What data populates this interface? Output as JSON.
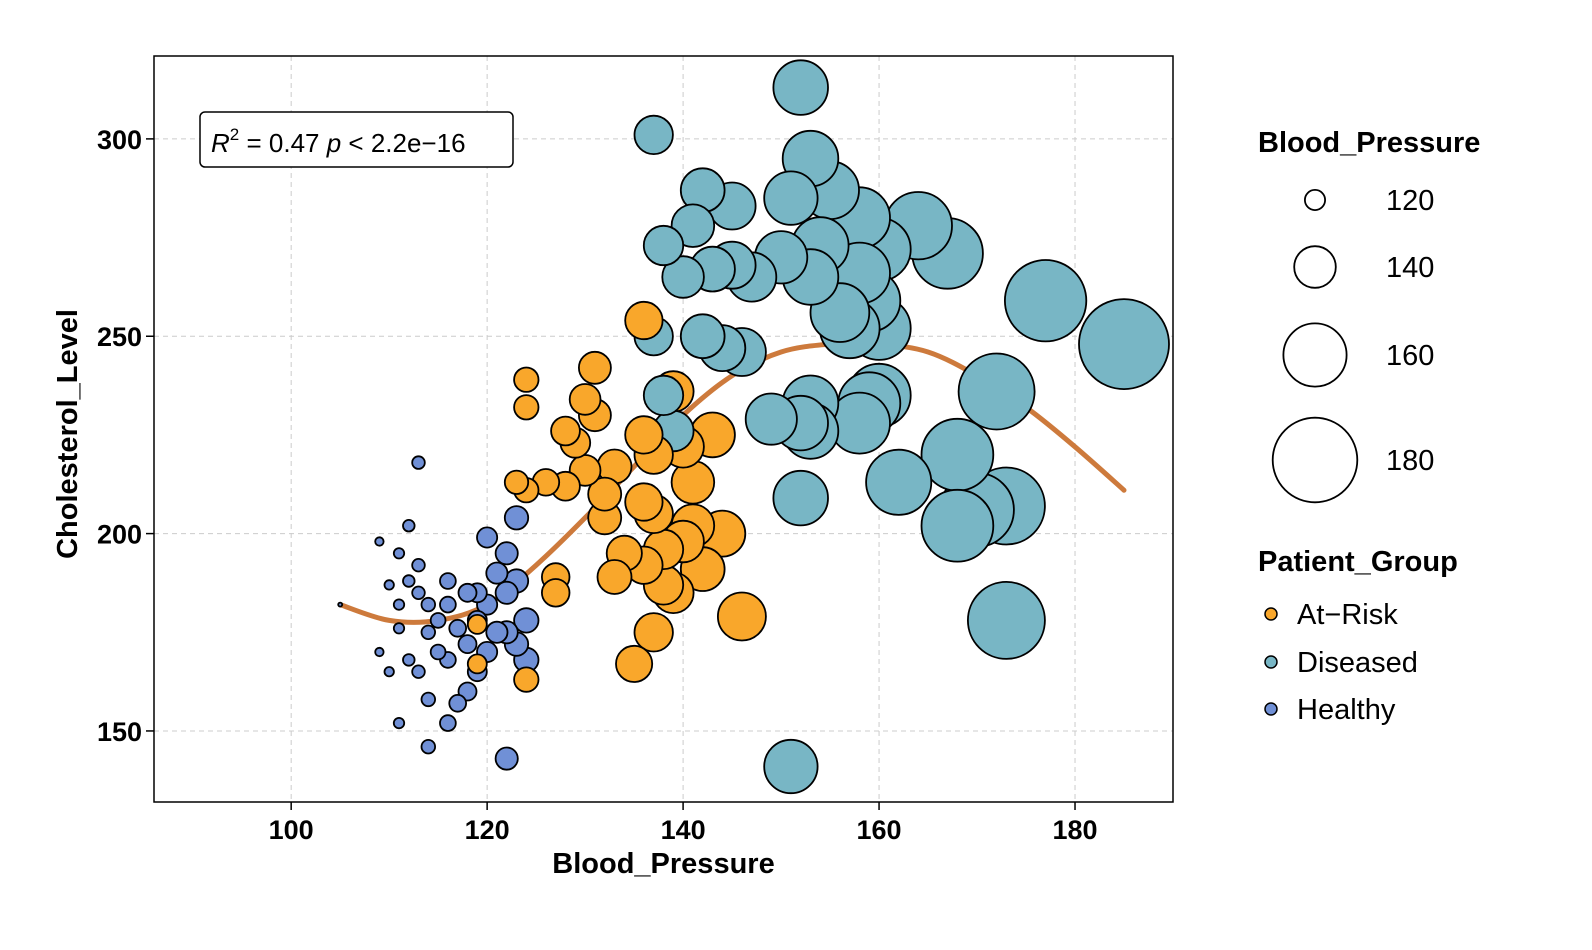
{
  "chart_data": {
    "type": "scatter",
    "xlabel": "Blood_Pressure",
    "ylabel": "Cholesterol_Level",
    "xlim": [
      86,
      190
    ],
    "ylim": [
      132,
      321
    ],
    "x_ticks": [
      100,
      120,
      140,
      160,
      180
    ],
    "y_ticks": [
      150,
      200,
      250,
      300
    ],
    "x_tick_labels": [
      "100",
      "120",
      "140",
      "160",
      "180"
    ],
    "y_tick_labels": [
      "150",
      "200",
      "250",
      "300"
    ],
    "grid": true,
    "annotation": {
      "r_label": "R",
      "r_power": "2",
      "r_value": " = 0.47 ",
      "p_label": "p",
      "p_value": " < 2.2e−16"
    },
    "size_legend": {
      "title": "Blood_Pressure",
      "entries": [
        {
          "value": 120,
          "label": "120"
        },
        {
          "value": 140,
          "label": "140"
        },
        {
          "value": 160,
          "label": "160"
        },
        {
          "value": 180,
          "label": "180"
        }
      ]
    },
    "color_legend": {
      "title": "Patient_Group",
      "entries": [
        {
          "name": "At−Risk",
          "color": "#F9A72B"
        },
        {
          "name": "Diseased",
          "color": "#78B6C5"
        },
        {
          "name": "Healthy",
          "color": "#7090D6"
        }
      ]
    },
    "trend": {
      "color": "#CD7A3C",
      "points": [
        [
          105,
          182
        ],
        [
          110,
          178
        ],
        [
          115,
          178
        ],
        [
          120,
          182
        ],
        [
          125,
          192
        ],
        [
          130,
          204
        ],
        [
          135,
          217
        ],
        [
          140,
          230
        ],
        [
          145,
          240
        ],
        [
          150,
          246
        ],
        [
          155,
          248
        ],
        [
          160,
          248
        ],
        [
          165,
          246
        ],
        [
          170,
          240
        ],
        [
          175,
          232
        ],
        [
          180,
          222
        ],
        [
          185,
          211
        ]
      ]
    },
    "series": [
      {
        "name": "Healthy",
        "color": "#7090D6",
        "points": [
          [
            105,
            182
          ],
          [
            109,
            198
          ],
          [
            109,
            170
          ],
          [
            110,
            165
          ],
          [
            110,
            187
          ],
          [
            111,
            152
          ],
          [
            111,
            176
          ],
          [
            111,
            182
          ],
          [
            111,
            195
          ],
          [
            112,
            202
          ],
          [
            112,
            168
          ],
          [
            112,
            188
          ],
          [
            113,
            218
          ],
          [
            113,
            192
          ],
          [
            113,
            185
          ],
          [
            113,
            165
          ],
          [
            114,
            146
          ],
          [
            114,
            158
          ],
          [
            114,
            182
          ],
          [
            114,
            175
          ],
          [
            115,
            178
          ],
          [
            115,
            170
          ],
          [
            116,
            152
          ],
          [
            116,
            188
          ],
          [
            116,
            168
          ],
          [
            116,
            182
          ],
          [
            117,
            176
          ],
          [
            117,
            157
          ],
          [
            118,
            185
          ],
          [
            118,
            172
          ],
          [
            118,
            160
          ],
          [
            119,
            185
          ],
          [
            119,
            165
          ],
          [
            119,
            178
          ],
          [
            120,
            182
          ],
          [
            120,
            199
          ],
          [
            120,
            170
          ],
          [
            121,
            175
          ],
          [
            121,
            190
          ],
          [
            122,
            143
          ],
          [
            122,
            175
          ],
          [
            122,
            185
          ],
          [
            122,
            195
          ],
          [
            123,
            204
          ],
          [
            123,
            172
          ],
          [
            123,
            188
          ],
          [
            124,
            168
          ],
          [
            124,
            178
          ]
        ]
      },
      {
        "name": "At−Risk",
        "color": "#F9A72B",
        "points": [
          [
            119,
            177
          ],
          [
            119,
            167
          ],
          [
            123,
            213
          ],
          [
            124,
            239
          ],
          [
            124,
            232
          ],
          [
            124,
            211
          ],
          [
            124,
            163
          ],
          [
            126,
            213
          ],
          [
            127,
            189
          ],
          [
            127,
            185
          ],
          [
            128,
            226
          ],
          [
            128,
            212
          ],
          [
            129,
            223
          ],
          [
            130,
            234
          ],
          [
            130,
            216
          ],
          [
            131,
            242
          ],
          [
            131,
            230
          ],
          [
            132,
            204
          ],
          [
            132,
            210
          ],
          [
            133,
            189
          ],
          [
            133,
            217
          ],
          [
            134,
            195
          ],
          [
            135,
            167
          ],
          [
            136,
            208
          ],
          [
            136,
            254
          ],
          [
            136,
            225
          ],
          [
            136,
            192
          ],
          [
            137,
            205
          ],
          [
            137,
            175
          ],
          [
            137,
            220
          ],
          [
            138,
            187
          ],
          [
            138,
            196
          ],
          [
            139,
            236
          ],
          [
            139,
            185
          ],
          [
            140,
            198
          ],
          [
            140,
            222
          ],
          [
            141,
            202
          ],
          [
            141,
            213
          ],
          [
            142,
            191
          ],
          [
            143,
            225
          ],
          [
            144,
            200
          ],
          [
            146,
            179
          ]
        ]
      },
      {
        "name": "Diseased",
        "color": "#78B6C5",
        "points": [
          [
            137,
            301
          ],
          [
            137,
            250
          ],
          [
            138,
            273
          ],
          [
            138,
            235
          ],
          [
            139,
            226
          ],
          [
            140,
            265
          ],
          [
            141,
            278
          ],
          [
            142,
            250
          ],
          [
            142,
            287
          ],
          [
            143,
            267
          ],
          [
            144,
            247
          ],
          [
            145,
            283
          ],
          [
            145,
            268
          ],
          [
            146,
            246
          ],
          [
            147,
            265
          ],
          [
            149,
            229
          ],
          [
            150,
            270
          ],
          [
            151,
            141
          ],
          [
            151,
            285
          ],
          [
            152,
            209
          ],
          [
            152,
            313
          ],
          [
            152,
            228
          ],
          [
            153,
            265
          ],
          [
            153,
            295
          ],
          [
            153,
            233
          ],
          [
            153,
            226
          ],
          [
            154,
            273
          ],
          [
            155,
            287
          ],
          [
            156,
            256
          ],
          [
            157,
            252
          ],
          [
            158,
            280
          ],
          [
            158,
            266
          ],
          [
            158,
            228
          ],
          [
            159,
            259
          ],
          [
            159,
            233
          ],
          [
            160,
            272
          ],
          [
            160,
            252
          ],
          [
            160,
            235
          ],
          [
            162,
            213
          ],
          [
            164,
            278
          ],
          [
            167,
            271
          ],
          [
            168,
            220
          ],
          [
            168,
            202
          ],
          [
            170,
            206
          ],
          [
            172,
            236
          ],
          [
            173,
            207
          ],
          [
            173,
            178
          ],
          [
            177,
            259
          ],
          [
            185,
            248
          ]
        ]
      }
    ]
  }
}
